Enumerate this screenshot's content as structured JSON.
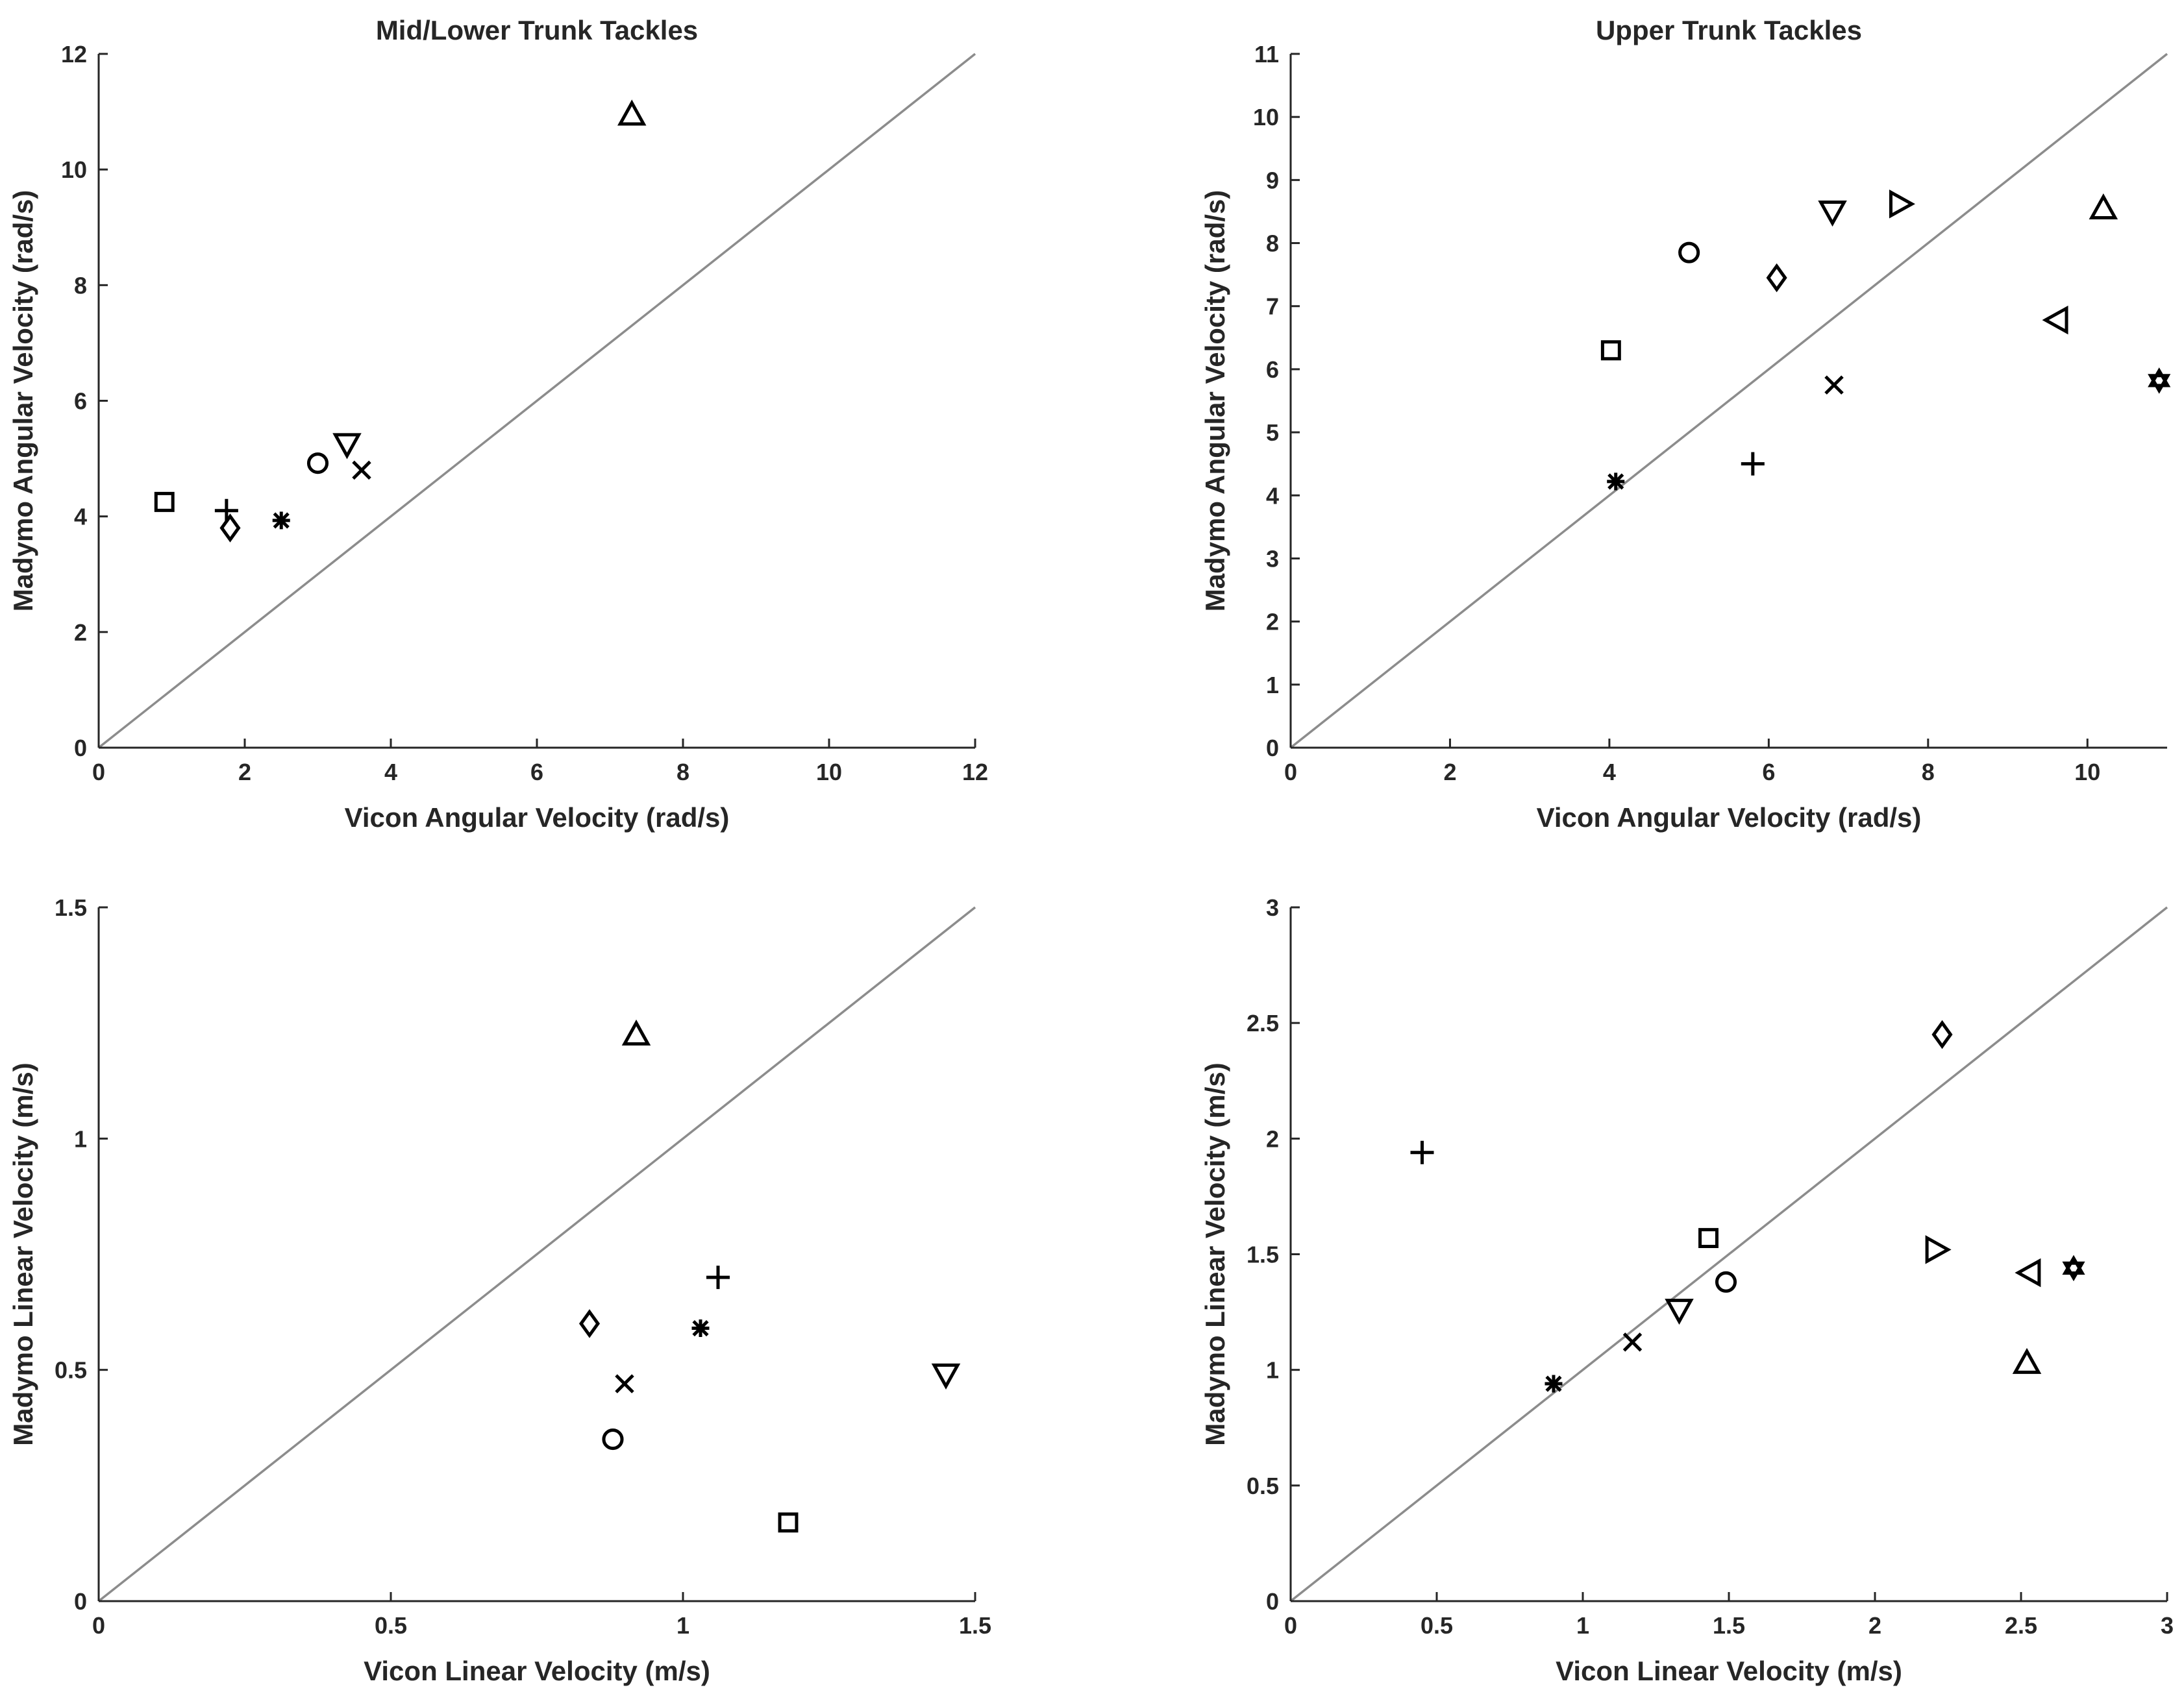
{
  "chart_data": [
    {
      "type": "scatter",
      "title": "Mid/Lower Trunk Tackles",
      "xlabel": "Vicon Angular Velocity (rad/s)",
      "ylabel": "Madymo Angular Velocity (rad/s)",
      "xlim": [
        0,
        12
      ],
      "ylim": [
        0,
        12
      ],
      "xticks": [
        0,
        2,
        4,
        6,
        8,
        10,
        12
      ],
      "yticks": [
        0,
        2,
        4,
        6,
        8,
        10,
        12
      ],
      "xtick_labels": [
        "0",
        "2",
        "4",
        "6",
        "8",
        "10",
        "12"
      ],
      "ytick_labels": [
        "0",
        "2",
        "4",
        "6",
        "8",
        "10",
        "12"
      ],
      "reference_line": "y = x",
      "points": [
        {
          "marker": "square",
          "x": 0.9,
          "y": 4.25
        },
        {
          "marker": "plus",
          "x": 1.75,
          "y": 4.1
        },
        {
          "marker": "diamond",
          "x": 1.8,
          "y": 3.8
        },
        {
          "marker": "asterisk",
          "x": 2.5,
          "y": 3.93
        },
        {
          "marker": "circle",
          "x": 3.0,
          "y": 4.92
        },
        {
          "marker": "triangle-down",
          "x": 3.4,
          "y": 5.25
        },
        {
          "marker": "x",
          "x": 3.6,
          "y": 4.8
        },
        {
          "marker": "triangle-up",
          "x": 7.3,
          "y": 10.95
        }
      ]
    },
    {
      "type": "scatter",
      "title": "Upper Trunk Tackles",
      "xlabel": "Vicon Angular Velocity (rad/s)",
      "ylabel": "Madymo Angular Velocity (rad/s)",
      "xlim": [
        0,
        11
      ],
      "ylim": [
        0,
        11
      ],
      "xticks": [
        0,
        2,
        4,
        6,
        8,
        10
      ],
      "yticks": [
        0,
        1,
        2,
        3,
        4,
        5,
        6,
        7,
        8,
        9,
        10,
        11
      ],
      "xtick_labels": [
        "0",
        "2",
        "4",
        "6",
        "8",
        "10"
      ],
      "ytick_labels": [
        "0",
        "1",
        "2",
        "3",
        "4",
        "5",
        "6",
        "7",
        "8",
        "9",
        "10",
        "11"
      ],
      "reference_line": "y = x",
      "points": [
        {
          "marker": "square",
          "x": 4.02,
          "y": 6.3
        },
        {
          "marker": "asterisk",
          "x": 4.08,
          "y": 4.22
        },
        {
          "marker": "circle",
          "x": 5.0,
          "y": 7.85
        },
        {
          "marker": "plus",
          "x": 5.8,
          "y": 4.5
        },
        {
          "marker": "diamond",
          "x": 6.1,
          "y": 7.45
        },
        {
          "marker": "triangle-down",
          "x": 6.8,
          "y": 8.5
        },
        {
          "marker": "x",
          "x": 6.82,
          "y": 5.75
        },
        {
          "marker": "triangle-right",
          "x": 7.65,
          "y": 8.62
        },
        {
          "marker": "triangle-left",
          "x": 9.62,
          "y": 6.78
        },
        {
          "marker": "triangle-up",
          "x": 10.2,
          "y": 8.55
        },
        {
          "marker": "hexagram",
          "x": 10.9,
          "y": 5.82
        }
      ]
    },
    {
      "type": "scatter",
      "title": "",
      "xlabel": "Vicon Linear Velocity (m/s)",
      "ylabel": "Madymo Linear Velocity (m/s)",
      "xlim": [
        0,
        1.5
      ],
      "ylim": [
        0,
        1.5
      ],
      "xticks": [
        0,
        0.5,
        1,
        1.5
      ],
      "yticks": [
        0,
        0.5,
        1,
        1.5
      ],
      "xtick_labels": [
        "0",
        "0.5",
        "1",
        "1.5"
      ],
      "ytick_labels": [
        "0",
        "0.5",
        "1",
        "1.5"
      ],
      "reference_line": "y = x",
      "points": [
        {
          "marker": "diamond",
          "x": 0.84,
          "y": 0.6
        },
        {
          "marker": "circle",
          "x": 0.88,
          "y": 0.35
        },
        {
          "marker": "x",
          "x": 0.9,
          "y": 0.47
        },
        {
          "marker": "triangle-up",
          "x": 0.92,
          "y": 1.225
        },
        {
          "marker": "asterisk",
          "x": 1.03,
          "y": 0.59
        },
        {
          "marker": "plus",
          "x": 1.06,
          "y": 0.7
        },
        {
          "marker": "square",
          "x": 1.18,
          "y": 0.17
        },
        {
          "marker": "triangle-down",
          "x": 1.45,
          "y": 0.49
        }
      ]
    },
    {
      "type": "scatter",
      "title": "",
      "xlabel": "Vicon Linear Velocity (m/s)",
      "ylabel": "Madymo Linear Velocity (m/s)",
      "xlim": [
        0,
        3
      ],
      "ylim": [
        0,
        3
      ],
      "xticks": [
        0,
        0.5,
        1,
        1.5,
        2,
        2.5,
        3
      ],
      "yticks": [
        0,
        0.5,
        1,
        1.5,
        2,
        2.5,
        3
      ],
      "xtick_labels": [
        "0",
        "0.5",
        "1",
        "1.5",
        "2",
        "2.5",
        "3"
      ],
      "ytick_labels": [
        "0",
        "0.5",
        "1",
        "1.5",
        "2",
        "2.5",
        "3"
      ],
      "reference_line": "y = x",
      "points": [
        {
          "marker": "plus",
          "x": 0.45,
          "y": 1.94
        },
        {
          "marker": "asterisk",
          "x": 0.9,
          "y": 0.94
        },
        {
          "marker": "x",
          "x": 1.17,
          "y": 1.12
        },
        {
          "marker": "triangle-down",
          "x": 1.33,
          "y": 1.26
        },
        {
          "marker": "square",
          "x": 1.43,
          "y": 1.57
        },
        {
          "marker": "circle",
          "x": 1.49,
          "y": 1.38
        },
        {
          "marker": "triangle-right",
          "x": 2.21,
          "y": 1.52
        },
        {
          "marker": "diamond",
          "x": 2.23,
          "y": 2.45
        },
        {
          "marker": "triangle-up",
          "x": 2.52,
          "y": 1.03
        },
        {
          "marker": "triangle-left",
          "x": 2.53,
          "y": 1.42
        },
        {
          "marker": "hexagram",
          "x": 2.68,
          "y": 1.44
        }
      ]
    }
  ]
}
